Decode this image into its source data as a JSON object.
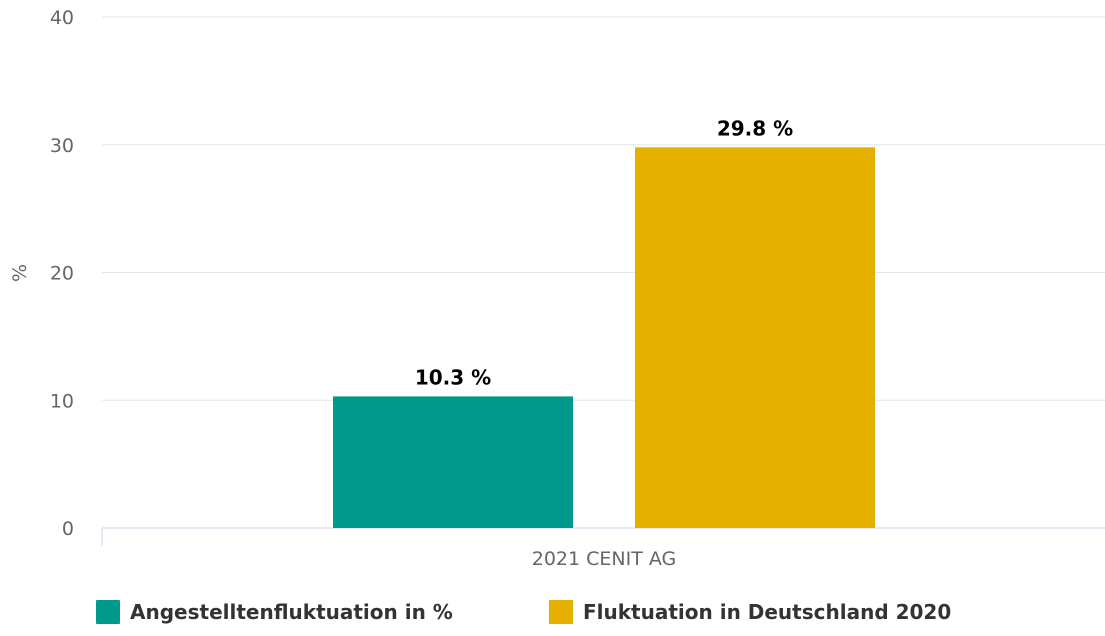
{
  "chart_data": {
    "type": "bar",
    "categories": [
      "2021 CENIT AG"
    ],
    "series": [
      {
        "name": "Angestelltenfluktuation in %",
        "values": [
          10.3
        ],
        "color": "#009a8c",
        "data_label": "10.3 %"
      },
      {
        "name": "Fluktuation in Deutschland 2020",
        "values": [
          29.8
        ],
        "color": "#e6b000",
        "data_label": "29.8 %"
      }
    ],
    "title": "",
    "xlabel": "",
    "ylabel": "%",
    "ylim": [
      0,
      40
    ],
    "yticks": [
      0,
      10,
      20,
      30,
      40
    ],
    "ytick_labels": [
      "0",
      "10",
      "20",
      "30",
      "40"
    ],
    "grid": true,
    "legend_position": "bottom"
  }
}
